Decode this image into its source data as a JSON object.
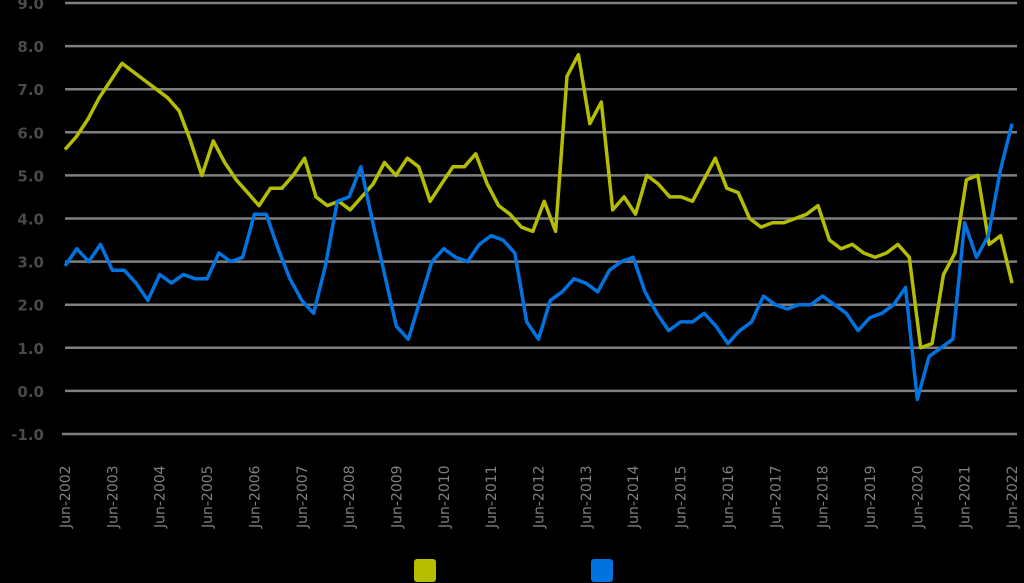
{
  "chart_data": {
    "type": "line",
    "title": "",
    "xlabel": "",
    "ylabel": "",
    "ylim": [
      -1.0,
      9.0
    ],
    "yticks": [
      "9.0",
      "8.0",
      "7.0",
      "6.0",
      "5.0",
      "4.0",
      "3.0",
      "2.0",
      "1.0",
      "0.0",
      "-1.0"
    ],
    "grid": true,
    "legend_position": "bottom",
    "x_tick_labels": [
      "Jun-2002",
      "Jun-2003",
      "Jun-2004",
      "Jun-2005",
      "Jun-2006",
      "Jun-2007",
      "Jun-2008",
      "Jun-2009",
      "Jun-2010",
      "Jun-2011",
      "Jun-2012",
      "Jun-2013",
      "Jun-2014",
      "Jun-2015",
      "Jun-2016",
      "Jun-2017",
      "Jun-2018",
      "Jun-2019",
      "Jun-2020",
      "Jun-2021",
      "Jun-2022"
    ],
    "x_frequency": "quarterly",
    "series": [
      {
        "name": "",
        "color": "#b5bd00",
        "values": [
          5.6,
          5.9,
          6.3,
          6.8,
          7.2,
          7.6,
          7.4,
          7.2,
          7.0,
          6.8,
          6.5,
          5.8,
          5.0,
          5.8,
          5.3,
          4.9,
          4.6,
          4.3,
          4.7,
          4.7,
          5.0,
          5.4,
          4.5,
          4.3,
          4.4,
          4.2,
          4.5,
          4.8,
          5.3,
          5.0,
          5.4,
          5.2,
          4.4,
          4.8,
          5.2,
          5.2,
          5.5,
          4.8,
          4.3,
          4.1,
          3.8,
          3.7,
          4.4,
          3.7,
          7.3,
          7.8,
          6.2,
          6.7,
          4.2,
          4.5,
          4.1,
          5.0,
          4.8,
          4.5,
          4.5,
          4.4,
          4.9,
          5.4,
          4.7,
          4.6,
          4.0,
          3.8,
          3.9,
          3.9,
          4.0,
          4.1,
          4.3,
          3.5,
          3.3,
          3.4,
          3.2,
          3.1,
          3.2,
          3.4,
          3.1,
          1.0,
          1.1,
          2.7,
          3.2,
          4.9,
          5.0,
          3.4,
          3.6,
          2.5
        ],
        "label_note": "legend text not visible"
      },
      {
        "name": "",
        "color": "#0073e0",
        "values": [
          2.9,
          3.3,
          3.0,
          3.4,
          2.8,
          2.8,
          2.5,
          2.1,
          2.7,
          2.5,
          2.7,
          2.6,
          2.6,
          3.2,
          3.0,
          3.1,
          4.1,
          4.1,
          3.3,
          2.6,
          2.1,
          1.8,
          2.9,
          4.4,
          4.5,
          5.2,
          3.9,
          2.7,
          1.5,
          1.2,
          2.1,
          3.0,
          3.3,
          3.1,
          3.0,
          3.4,
          3.6,
          3.5,
          3.2,
          1.6,
          1.2,
          2.1,
          2.3,
          2.6,
          2.5,
          2.3,
          2.8,
          3.0,
          3.1,
          2.3,
          1.8,
          1.4,
          1.6,
          1.6,
          1.8,
          1.5,
          1.1,
          1.4,
          1.6,
          2.2,
          2.0,
          1.9,
          2.0,
          2.0,
          2.2,
          2.0,
          1.8,
          1.4,
          1.7,
          1.8,
          2.0,
          2.4,
          -0.2,
          0.8,
          1.0,
          1.2,
          3.9,
          3.1,
          3.6,
          5.1,
          6.2
        ],
        "label_note": "legend text not visible"
      }
    ]
  },
  "legend": {
    "items": [
      {
        "color": "#b5bd00",
        "label": ""
      },
      {
        "color": "#0073e0",
        "label": ""
      }
    ]
  },
  "style": {
    "background": "#000000",
    "grid_color": "#7f7f7f",
    "ytick_color": "#4a4a4a",
    "xtick_color": "#7f7f7f"
  }
}
